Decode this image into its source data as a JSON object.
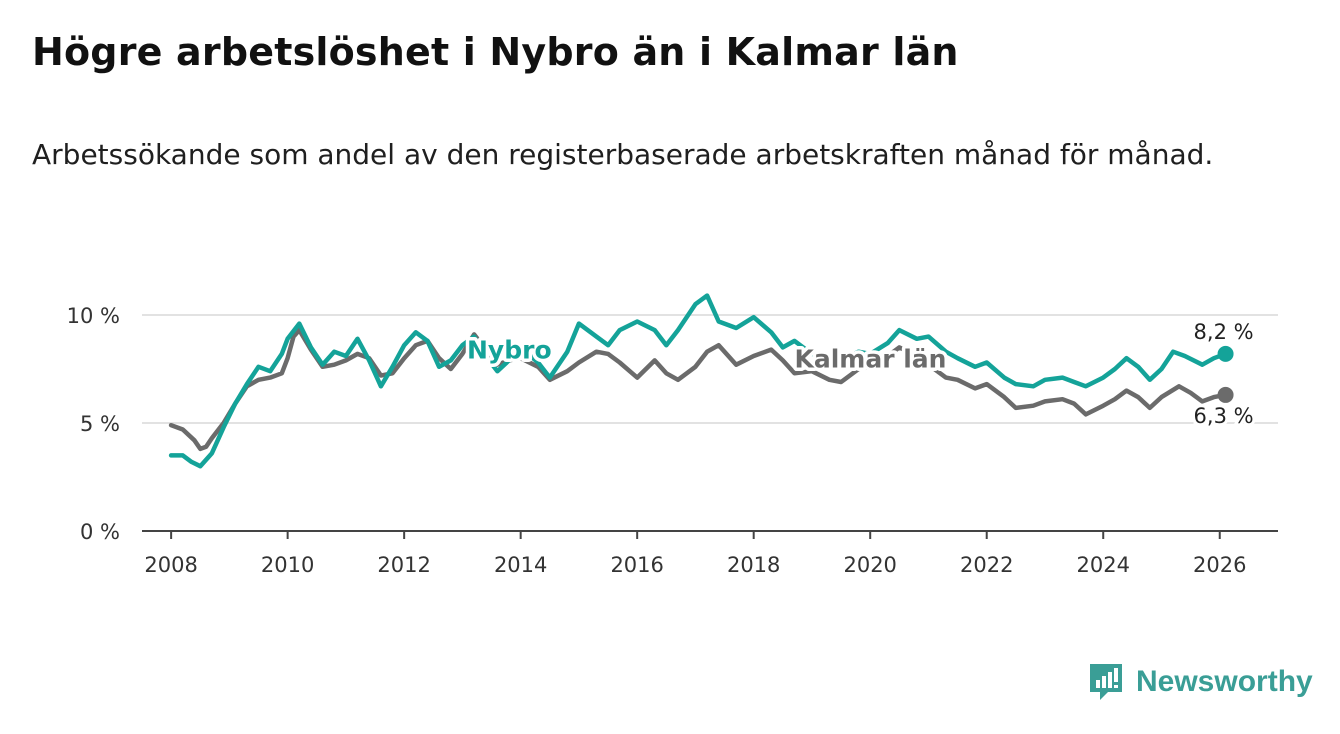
{
  "title": "Högre arbetslöshet i Nybro än i Kalmar län",
  "subtitle": "Arbetssökande som andel av den registerbaserade arbetskraften månad för månad.",
  "brand": {
    "name": "Newsworthy",
    "icon": "newsworthy-logo-icon",
    "color": "#3a9e96"
  },
  "chart_data": {
    "type": "line",
    "title": "Högre arbetslöshet i Nybro än i Kalmar län",
    "xlabel": "",
    "ylabel": "",
    "xlim": [
      2007.5,
      2027.0
    ],
    "ylim": [
      0,
      10
    ],
    "xticks": [
      2008,
      2010,
      2012,
      2014,
      2016,
      2018,
      2020,
      2022,
      2024,
      2026
    ],
    "xtick_labels": [
      "2008",
      "2010",
      "2012",
      "2014",
      "2016",
      "2018",
      "2020",
      "2022",
      "2024",
      "2026"
    ],
    "yticks": [
      0,
      5,
      10
    ],
    "ytick_labels": [
      "0 %",
      "5 %",
      "10 %"
    ],
    "grid": true,
    "legend": "inline labels on lines",
    "series": [
      {
        "name": "Kalmar län",
        "color": "#6b6b6b",
        "end_label": "6,3 %",
        "label_at": 2018.7,
        "points": [
          [
            2008.0,
            4.9
          ],
          [
            2008.2,
            4.7
          ],
          [
            2008.4,
            4.2
          ],
          [
            2008.5,
            3.8
          ],
          [
            2008.6,
            3.9
          ],
          [
            2008.7,
            4.3
          ],
          [
            2008.9,
            5.0
          ],
          [
            2009.1,
            5.9
          ],
          [
            2009.3,
            6.7
          ],
          [
            2009.5,
            7.0
          ],
          [
            2009.7,
            7.1
          ],
          [
            2009.9,
            7.3
          ],
          [
            2010.0,
            8.0
          ],
          [
            2010.1,
            9.0
          ],
          [
            2010.2,
            9.3
          ],
          [
            2010.4,
            8.4
          ],
          [
            2010.6,
            7.6
          ],
          [
            2010.8,
            7.7
          ],
          [
            2011.0,
            7.9
          ],
          [
            2011.2,
            8.2
          ],
          [
            2011.4,
            8.0
          ],
          [
            2011.6,
            7.2
          ],
          [
            2011.8,
            7.3
          ],
          [
            2012.0,
            8.0
          ],
          [
            2012.2,
            8.6
          ],
          [
            2012.4,
            8.8
          ],
          [
            2012.6,
            8.0
          ],
          [
            2012.8,
            7.5
          ],
          [
            2013.0,
            8.2
          ],
          [
            2013.2,
            9.1
          ],
          [
            2013.4,
            8.4
          ],
          [
            2013.6,
            7.7
          ],
          [
            2013.8,
            7.9
          ],
          [
            2014.0,
            8.0
          ],
          [
            2014.3,
            7.6
          ],
          [
            2014.5,
            7.0
          ],
          [
            2014.8,
            7.4
          ],
          [
            2015.0,
            7.8
          ],
          [
            2015.3,
            8.3
          ],
          [
            2015.5,
            8.2
          ],
          [
            2015.7,
            7.8
          ],
          [
            2016.0,
            7.1
          ],
          [
            2016.3,
            7.9
          ],
          [
            2016.5,
            7.3
          ],
          [
            2016.7,
            7.0
          ],
          [
            2017.0,
            7.6
          ],
          [
            2017.2,
            8.3
          ],
          [
            2017.4,
            8.6
          ],
          [
            2017.7,
            7.7
          ],
          [
            2018.0,
            8.1
          ],
          [
            2018.3,
            8.4
          ],
          [
            2018.5,
            7.9
          ],
          [
            2018.7,
            7.3
          ],
          [
            2019.0,
            7.4
          ],
          [
            2019.3,
            7.0
          ],
          [
            2019.5,
            6.9
          ],
          [
            2019.8,
            7.5
          ],
          [
            2020.0,
            7.6
          ],
          [
            2020.3,
            8.1
          ],
          [
            2020.5,
            8.5
          ],
          [
            2020.8,
            8.1
          ],
          [
            2021.0,
            7.7
          ],
          [
            2021.3,
            7.1
          ],
          [
            2021.5,
            7.0
          ],
          [
            2021.8,
            6.6
          ],
          [
            2022.0,
            6.8
          ],
          [
            2022.3,
            6.2
          ],
          [
            2022.5,
            5.7
          ],
          [
            2022.8,
            5.8
          ],
          [
            2023.0,
            6.0
          ],
          [
            2023.3,
            6.1
          ],
          [
            2023.5,
            5.9
          ],
          [
            2023.7,
            5.4
          ],
          [
            2024.0,
            5.8
          ],
          [
            2024.2,
            6.1
          ],
          [
            2024.4,
            6.5
          ],
          [
            2024.6,
            6.2
          ],
          [
            2024.8,
            5.7
          ],
          [
            2025.0,
            6.2
          ],
          [
            2025.3,
            6.7
          ],
          [
            2025.5,
            6.4
          ],
          [
            2025.7,
            6.0
          ],
          [
            2025.9,
            6.2
          ],
          [
            2026.1,
            6.3
          ]
        ]
      },
      {
        "name": "Nybro",
        "color": "#14a399",
        "end_label": "8,2 %",
        "label_at": 2013.8,
        "points": [
          [
            2008.0,
            3.5
          ],
          [
            2008.2,
            3.5
          ],
          [
            2008.35,
            3.2
          ],
          [
            2008.5,
            3.0
          ],
          [
            2008.7,
            3.6
          ],
          [
            2008.9,
            4.8
          ],
          [
            2009.1,
            5.9
          ],
          [
            2009.3,
            6.8
          ],
          [
            2009.5,
            7.6
          ],
          [
            2009.7,
            7.4
          ],
          [
            2009.9,
            8.2
          ],
          [
            2010.0,
            8.9
          ],
          [
            2010.2,
            9.6
          ],
          [
            2010.4,
            8.5
          ],
          [
            2010.6,
            7.7
          ],
          [
            2010.8,
            8.3
          ],
          [
            2011.0,
            8.1
          ],
          [
            2011.2,
            8.9
          ],
          [
            2011.4,
            7.9
          ],
          [
            2011.6,
            6.7
          ],
          [
            2011.8,
            7.6
          ],
          [
            2012.0,
            8.6
          ],
          [
            2012.2,
            9.2
          ],
          [
            2012.4,
            8.8
          ],
          [
            2012.6,
            7.6
          ],
          [
            2012.8,
            7.9
          ],
          [
            2013.0,
            8.6
          ],
          [
            2013.2,
            9.0
          ],
          [
            2013.4,
            8.1
          ],
          [
            2013.6,
            7.4
          ],
          [
            2013.8,
            7.9
          ],
          [
            2014.0,
            8.5
          ],
          [
            2014.3,
            7.8
          ],
          [
            2014.5,
            7.1
          ],
          [
            2014.8,
            8.3
          ],
          [
            2015.0,
            9.6
          ],
          [
            2015.3,
            9.0
          ],
          [
            2015.5,
            8.6
          ],
          [
            2015.7,
            9.3
          ],
          [
            2016.0,
            9.7
          ],
          [
            2016.3,
            9.3
          ],
          [
            2016.5,
            8.6
          ],
          [
            2016.7,
            9.3
          ],
          [
            2017.0,
            10.5
          ],
          [
            2017.2,
            10.9
          ],
          [
            2017.4,
            9.7
          ],
          [
            2017.7,
            9.4
          ],
          [
            2018.0,
            9.9
          ],
          [
            2018.3,
            9.2
          ],
          [
            2018.5,
            8.5
          ],
          [
            2018.7,
            8.8
          ],
          [
            2019.0,
            8.2
          ],
          [
            2019.3,
            8.1
          ],
          [
            2019.5,
            7.9
          ],
          [
            2019.8,
            8.3
          ],
          [
            2020.0,
            8.2
          ],
          [
            2020.3,
            8.7
          ],
          [
            2020.5,
            9.3
          ],
          [
            2020.8,
            8.9
          ],
          [
            2021.0,
            9.0
          ],
          [
            2021.3,
            8.3
          ],
          [
            2021.5,
            8.0
          ],
          [
            2021.8,
            7.6
          ],
          [
            2022.0,
            7.8
          ],
          [
            2022.3,
            7.1
          ],
          [
            2022.5,
            6.8
          ],
          [
            2022.8,
            6.7
          ],
          [
            2023.0,
            7.0
          ],
          [
            2023.3,
            7.1
          ],
          [
            2023.5,
            6.9
          ],
          [
            2023.7,
            6.7
          ],
          [
            2024.0,
            7.1
          ],
          [
            2024.2,
            7.5
          ],
          [
            2024.4,
            8.0
          ],
          [
            2024.6,
            7.6
          ],
          [
            2024.8,
            7.0
          ],
          [
            2025.0,
            7.5
          ],
          [
            2025.2,
            8.3
          ],
          [
            2025.4,
            8.1
          ],
          [
            2025.7,
            7.7
          ],
          [
            2025.9,
            8.0
          ],
          [
            2026.1,
            8.2
          ]
        ]
      }
    ]
  }
}
